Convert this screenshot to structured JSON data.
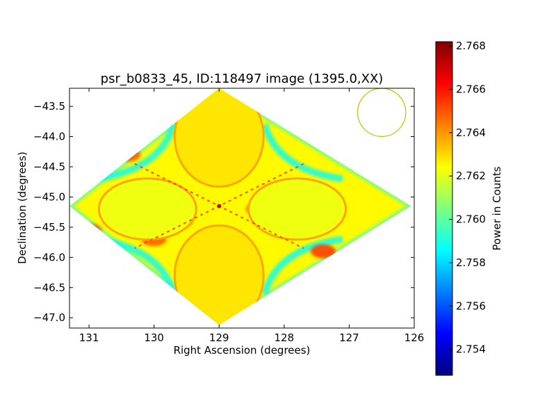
{
  "chart_data": {
    "type": "heatmap",
    "title": "psr_b0833_45, ID:118497 image (1395.0,XX)",
    "xlabel": "Right Ascension (degrees)",
    "ylabel": "Declination (degrees)",
    "colorbar_label": "Power in Counts",
    "xlim": [
      131.3,
      126.0
    ],
    "ylim": [
      -47.17,
      -43.2
    ],
    "x_ticks": [
      131,
      130,
      129,
      128,
      127,
      126
    ],
    "y_ticks": [
      -43.5,
      -44.0,
      -44.5,
      -45.0,
      -45.5,
      -46.0,
      -46.5,
      -47.0
    ],
    "x_tick_labels": [
      "131",
      "130",
      "129",
      "128",
      "127",
      "126"
    ],
    "y_tick_labels": [
      "−43.5",
      "−44.0",
      "−44.5",
      "−45.0",
      "−45.5",
      "−46.0",
      "−46.5",
      "−47.0"
    ],
    "colorbar_range": [
      2.7528,
      2.7682
    ],
    "colorbar_ticks": [
      2.754,
      2.756,
      2.758,
      2.76,
      2.762,
      2.764,
      2.766,
      2.768
    ],
    "colorbar_tick_labels": [
      "2.754",
      "2.756",
      "2.758",
      "2.760",
      "2.762",
      "2.764",
      "2.766",
      "2.768"
    ],
    "colormap": "jet",
    "colormap_stops": [
      "#00007f",
      "#0000ff",
      "#007fff",
      "#00ffff",
      "#7fff7f",
      "#ffff00",
      "#ff7f00",
      "#ff0000",
      "#7f0000"
    ],
    "field_boundary_ra_dec": [
      [
        129.0,
        -43.2
      ],
      [
        126.05,
        -45.15
      ],
      [
        129.0,
        -47.12
      ],
      [
        131.3,
        -45.15
      ]
    ],
    "background_level": 2.7625,
    "lobes": [
      {
        "ra": 129.0,
        "dec": -44.0,
        "level": 2.7628
      },
      {
        "ra": 129.0,
        "dec": -46.3,
        "level": 2.7628
      },
      {
        "ra": 130.1,
        "dec": -45.2,
        "level": 2.7622
      },
      {
        "ra": 127.8,
        "dec": -45.2,
        "level": 2.7622
      }
    ],
    "beam_marker": {
      "ra": 126.5,
      "dec": -43.6,
      "radius_deg": 0.37,
      "color": "#bfbf00"
    }
  }
}
